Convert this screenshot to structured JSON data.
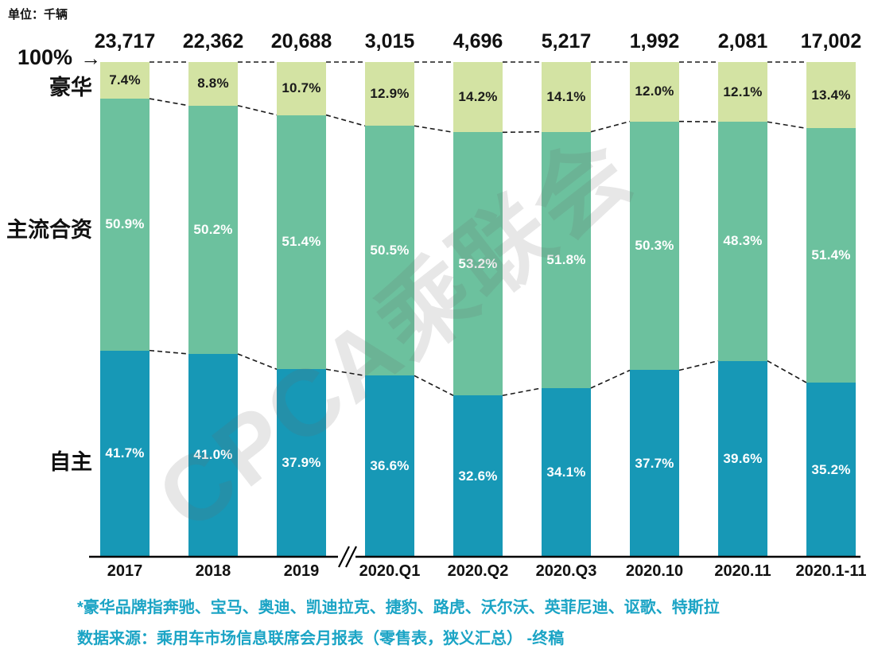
{
  "unit_label": "单位：千辆",
  "y_axis": {
    "top_label": "100%"
  },
  "icons": {
    "right_arrow": "→"
  },
  "series_labels": {
    "luxury": "豪华",
    "jv": "主流合资",
    "own": "自主"
  },
  "watermark": "CPCA乘联会",
  "footnotes": {
    "line1": "*豪华品牌指奔驰、宝马、奥迪、凯迪拉克、捷豹、路虎、沃尔沃、英菲尼迪、讴歌、特斯拉",
    "line2": "数据来源：乘用车市场信息联席会月报表（零售表，狭义汇总） -终稿"
  },
  "colors": {
    "luxury": "#d3e3a3",
    "jv": "#6cc19e",
    "own": "#1798b6",
    "luxury_label_text": "#1a1a1a",
    "light_label_text": "#ffffff",
    "footnote_text": "#1ba4c5",
    "axis": "#000000",
    "dashed_line": "#1a1a1a"
  },
  "chart_data": {
    "type": "bar",
    "variant": "100%-stacked-column",
    "title": "",
    "xlabel": "",
    "ylabel": "单位：千辆",
    "ylim": [
      0,
      100
    ],
    "grid": false,
    "legend_position": "left-row-labels",
    "axis_break_after_category": "2019",
    "categories": [
      "2017",
      "2018",
      "2019",
      "2020.Q1",
      "2020.Q2",
      "2020.Q3",
      "2020.10",
      "2020.11",
      "2020.1-11"
    ],
    "totals": [
      "23,717",
      "22,362",
      "20,688",
      "3,015",
      "4,696",
      "5,217",
      "1,992",
      "2,081",
      "17,002"
    ],
    "series": [
      {
        "name": "豪华",
        "values": [
          7.4,
          8.8,
          10.7,
          12.9,
          14.2,
          14.1,
          12.0,
          12.1,
          13.4
        ]
      },
      {
        "name": "主流合资",
        "values": [
          50.9,
          50.2,
          51.4,
          50.5,
          53.2,
          51.8,
          50.3,
          48.3,
          51.4
        ]
      },
      {
        "name": "自主",
        "values": [
          41.7,
          41.0,
          37.9,
          36.6,
          32.6,
          34.1,
          37.7,
          39.6,
          35.2
        ]
      }
    ]
  }
}
